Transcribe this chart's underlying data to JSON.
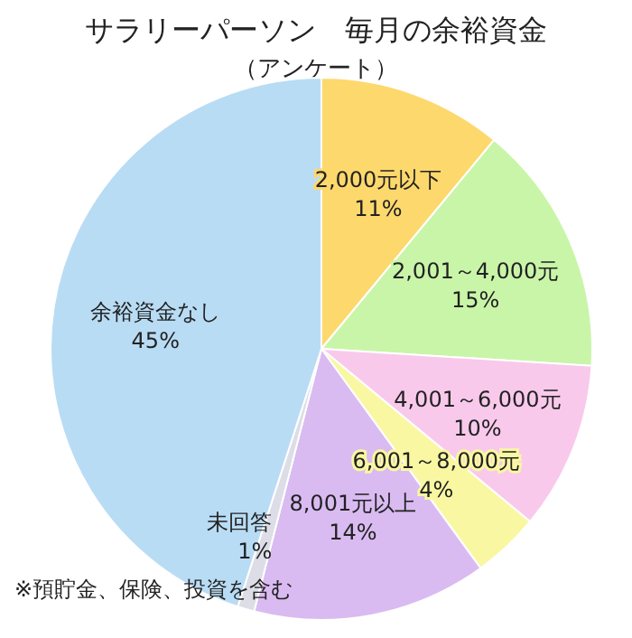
{
  "chart_data": {
    "type": "pie",
    "title": "サラリーパーソン　毎月の余裕資金",
    "subtitle": "（アンケート）",
    "categories": [
      "2,000元以下",
      "2,001～4,000元",
      "4,001～6,000元",
      "6,001～8,000元",
      "8,001元以上",
      "未回答",
      "余裕資金なし"
    ],
    "values": [
      11,
      15,
      10,
      4,
      14,
      1,
      45
    ],
    "value_labels": [
      "11%",
      "15%",
      "10%",
      "4%",
      "14%",
      "1%",
      "45%"
    ],
    "colors": [
      "#fdd86c",
      "#c9f5a9",
      "#f9c9ec",
      "#f9f7a2",
      "#d9bbf1",
      "#dcdde6",
      "#b9dcf5"
    ],
    "annotations": [
      "※預貯金、保険、投資を含む"
    ]
  }
}
